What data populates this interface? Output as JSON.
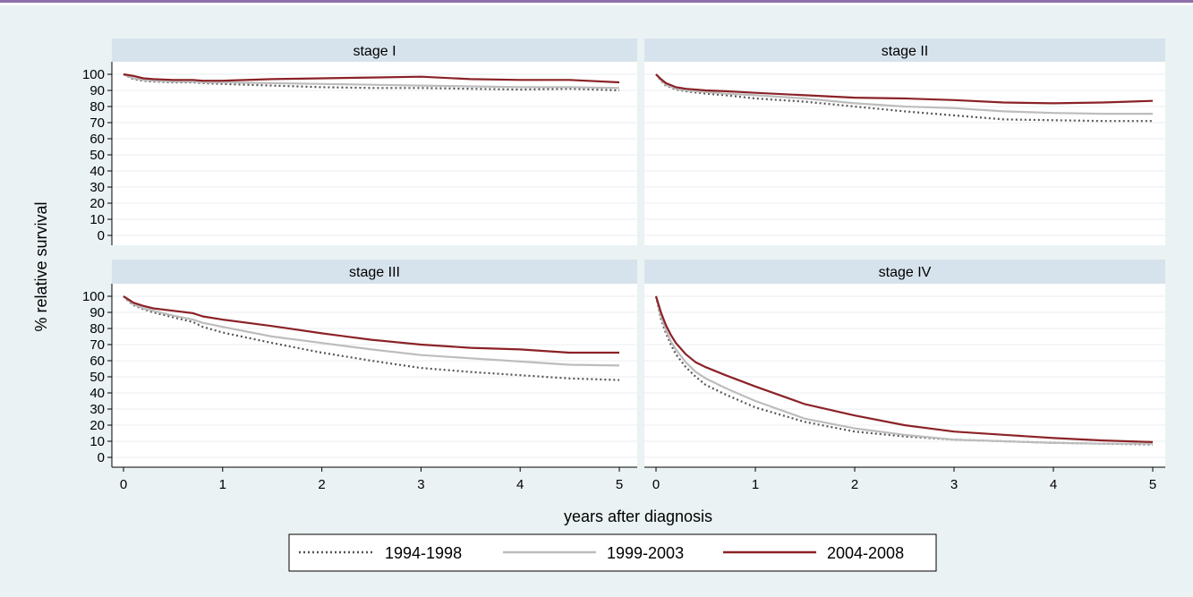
{
  "chart_data": {
    "type": "line",
    "ylabel": "% relative survival",
    "xlabel": "years after diagnosis",
    "xlim": [
      0,
      5
    ],
    "ylim": [
      0,
      100
    ],
    "x_ticks": [
      0,
      1,
      2,
      3,
      4,
      5
    ],
    "y_ticks": [
      0,
      10,
      20,
      30,
      40,
      50,
      60,
      70,
      80,
      90,
      100
    ],
    "grid": true,
    "legend_position": "bottom",
    "colors": {
      "figure_bg": "#eaf2f3",
      "plot_bg": "#ffffff",
      "strip_bg": "#d6e3ec",
      "grid": "#e8eef1",
      "s1994": "#555555",
      "s1999": "#bdbdbd",
      "s2004": "#8b2227"
    },
    "series_meta": [
      {
        "name": "1994-1998",
        "color": "#555555",
        "dash": "2,3"
      },
      {
        "name": "1999-2003",
        "color": "#bdbdbd",
        "dash": ""
      },
      {
        "name": "2004-2008",
        "color": "#8b2227",
        "dash": ""
      }
    ],
    "panels": [
      {
        "title": "stage I",
        "x": [
          0,
          0.1,
          0.2,
          0.3,
          0.5,
          0.7,
          0.8,
          1,
          1.5,
          2,
          2.5,
          3,
          3.5,
          4,
          4.5,
          5
        ],
        "series": [
          {
            "name": "1994-1998",
            "values": [
              100,
              97,
              96,
              95.5,
              95,
              95,
              94.5,
              94,
              93,
              92,
              91.5,
              91.5,
              91,
              90.5,
              91,
              90
            ]
          },
          {
            "name": "1999-2003",
            "values": [
              100,
              97.5,
              96.5,
              96,
              95.5,
              95.5,
              95,
              95,
              94.5,
              94,
              93.5,
              93,
              92.5,
              92,
              92,
              91.5
            ]
          },
          {
            "name": "2004-2008",
            "values": [
              100,
              99,
              97.5,
              97,
              96.5,
              96.5,
              96,
              96,
              97,
              97.5,
              98,
              98.5,
              97,
              96.5,
              96.5,
              95
            ]
          }
        ]
      },
      {
        "title": "stage II",
        "x": [
          0,
          0.05,
          0.1,
          0.2,
          0.3,
          0.5,
          0.7,
          1,
          1.5,
          2,
          2.5,
          3,
          3.5,
          4,
          4.5,
          5
        ],
        "series": [
          {
            "name": "1994-1998",
            "values": [
              100,
              96,
              93,
              90.5,
              89.5,
              88,
              87,
              85,
              83,
              80,
              77,
              74.5,
              72,
              71.5,
              71,
              71
            ]
          },
          {
            "name": "1999-2003",
            "values": [
              100,
              96.5,
              93.5,
              91,
              90,
              89,
              88,
              87,
              85,
              82,
              80,
              79,
              77,
              76,
              75.5,
              75.5
            ]
          },
          {
            "name": "2004-2008",
            "values": [
              100,
              97,
              94.5,
              92,
              91,
              90,
              89.5,
              88.5,
              87,
              85.5,
              85,
              84,
              82.5,
              82,
              82.5,
              83.5
            ]
          }
        ]
      },
      {
        "title": "stage III",
        "x": [
          0,
          0.05,
          0.1,
          0.2,
          0.3,
          0.5,
          0.7,
          0.8,
          1,
          1.5,
          2,
          2.5,
          3,
          3.5,
          4,
          4.5,
          5
        ],
        "series": [
          {
            "name": "1994-1998",
            "values": [
              100,
              97,
              94.5,
              92,
              90,
              87,
              84,
              81,
              77.5,
              71,
              65,
              60,
              55.5,
              53,
              51,
              49,
              48
            ]
          },
          {
            "name": "1999-2003",
            "values": [
              100,
              97.5,
              95,
              92.5,
              91,
              88,
              85.5,
              83.5,
              81,
              75,
              71,
              67,
              63.5,
              61.5,
              59.5,
              57.5,
              57
            ]
          },
          {
            "name": "2004-2008",
            "values": [
              100,
              98,
              96,
              94,
              92.5,
              91,
              89.5,
              87.5,
              85.5,
              81.5,
              77,
              73,
              70,
              68,
              67,
              65,
              65
            ]
          }
        ]
      },
      {
        "title": "stage IV",
        "x": [
          0,
          0.05,
          0.1,
          0.15,
          0.2,
          0.3,
          0.4,
          0.5,
          0.7,
          1,
          1.5,
          2,
          2.5,
          3,
          3.5,
          4,
          4.5,
          5
        ],
        "series": [
          {
            "name": "1994-1998",
            "values": [
              100,
              86,
              77,
              70,
              64,
              56,
              50,
              45,
              39,
              31,
              22,
              16,
              13,
              11,
              10,
              9,
              8.5,
              8
            ]
          },
          {
            "name": "1999-2003",
            "values": [
              100,
              88,
              79,
              72,
              67,
              59,
              53,
              49,
              43,
              35,
              24,
              18,
              14,
              11,
              10,
              9,
              8.5,
              8.5
            ]
          },
          {
            "name": "2004-2008",
            "values": [
              100,
              90,
              82,
              76,
              71,
              64,
              59,
              56,
              51,
              44,
              33,
              26,
              20,
              16,
              14,
              12,
              10.5,
              9.5
            ]
          }
        ]
      }
    ]
  }
}
